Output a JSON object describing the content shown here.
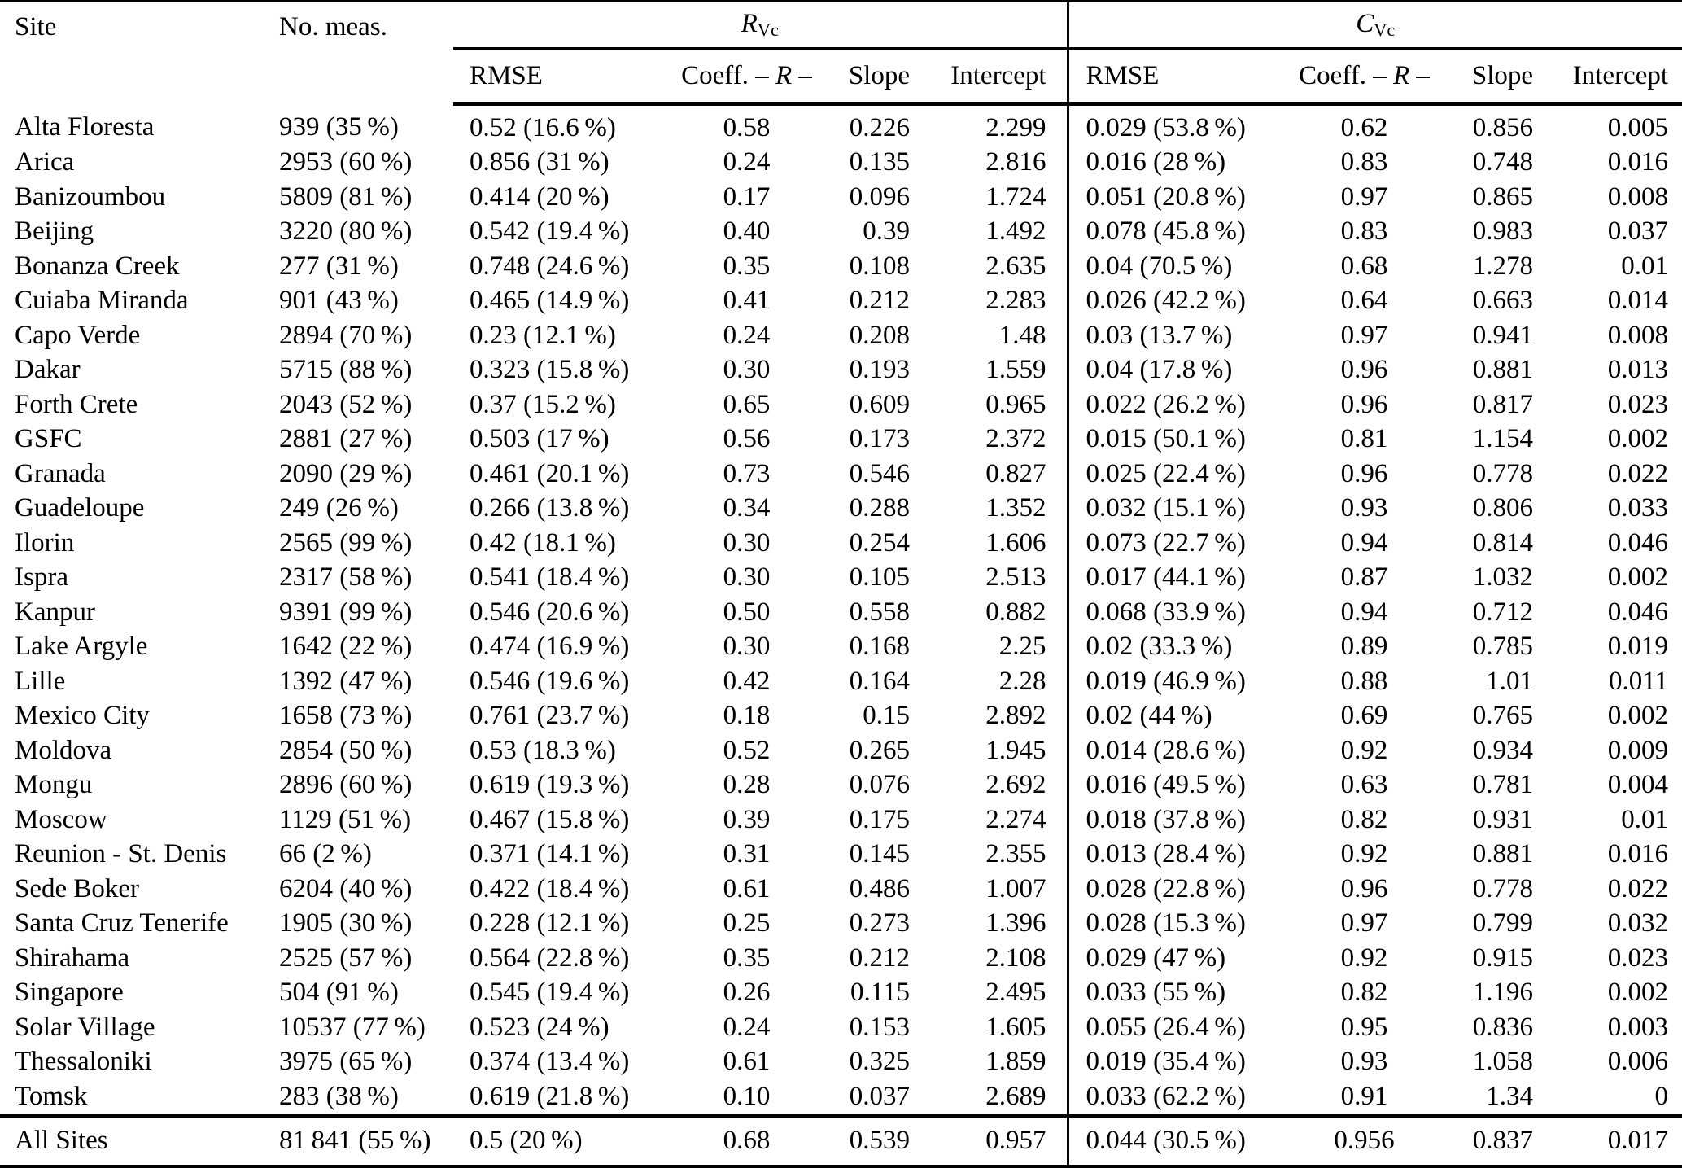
{
  "table": {
    "header": {
      "site": "Site",
      "no_meas": "No. meas."
    },
    "groups": [
      {
        "letter": "R",
        "sub": "Vc"
      },
      {
        "letter": "C",
        "sub": "Vc"
      }
    ],
    "sub_headers": {
      "rmse": "RMSE",
      "coeff": [
        "Coeff. – ",
        "R",
        " –"
      ],
      "slope": "Slope",
      "intercept": "Intercept"
    },
    "rows": [
      [
        "Alta Floresta",
        "939 (35 %)",
        "0.52 (16.6 %)",
        "0.58",
        "0.226",
        "2.299",
        "0.029 (53.8 %)",
        "0.62",
        "0.856",
        "0.005"
      ],
      [
        "Arica",
        "2953 (60 %)",
        "0.856 (31 %)",
        "0.24",
        "0.135",
        "2.816",
        "0.016 (28 %)",
        "0.83",
        "0.748",
        "0.016"
      ],
      [
        "Banizoumbou",
        "5809 (81 %)",
        "0.414 (20 %)",
        "0.17",
        "0.096",
        "1.724",
        "0.051 (20.8 %)",
        "0.97",
        "0.865",
        "0.008"
      ],
      [
        "Beijing",
        "3220 (80 %)",
        "0.542 (19.4 %)",
        "0.40",
        "0.39",
        "1.492",
        "0.078 (45.8 %)",
        "0.83",
        "0.983",
        "0.037"
      ],
      [
        "Bonanza Creek",
        "277 (31 %)",
        "0.748 (24.6 %)",
        "0.35",
        "0.108",
        "2.635",
        "0.04 (70.5 %)",
        "0.68",
        "1.278",
        "0.01"
      ],
      [
        "Cuiaba Miranda",
        "901 (43 %)",
        "0.465 (14.9 %)",
        "0.41",
        "0.212",
        "2.283",
        "0.026 (42.2 %)",
        "0.64",
        "0.663",
        "0.014"
      ],
      [
        "Capo Verde",
        "2894 (70 %)",
        "0.23 (12.1 %)",
        "0.24",
        "0.208",
        "1.48",
        "0.03 (13.7 %)",
        "0.97",
        "0.941",
        "0.008"
      ],
      [
        "Dakar",
        "5715 (88 %)",
        "0.323 (15.8 %)",
        "0.30",
        "0.193",
        "1.559",
        "0.04 (17.8 %)",
        "0.96",
        "0.881",
        "0.013"
      ],
      [
        "Forth Crete",
        "2043 (52 %)",
        "0.37 (15.2 %)",
        "0.65",
        "0.609",
        "0.965",
        "0.022 (26.2 %)",
        "0.96",
        "0.817",
        "0.023"
      ],
      [
        "GSFC",
        "2881 (27 %)",
        "0.503 (17 %)",
        "0.56",
        "0.173",
        "2.372",
        "0.015 (50.1 %)",
        "0.81",
        "1.154",
        "0.002"
      ],
      [
        "Granada",
        "2090 (29 %)",
        "0.461 (20.1 %)",
        "0.73",
        "0.546",
        "0.827",
        "0.025 (22.4 %)",
        "0.96",
        "0.778",
        "0.022"
      ],
      [
        "Guadeloupe",
        "249 (26 %)",
        "0.266 (13.8 %)",
        "0.34",
        "0.288",
        "1.352",
        "0.032 (15.1 %)",
        "0.93",
        "0.806",
        "0.033"
      ],
      [
        "Ilorin",
        "2565 (99 %)",
        "0.42 (18.1 %)",
        "0.30",
        "0.254",
        "1.606",
        "0.073 (22.7 %)",
        "0.94",
        "0.814",
        "0.046"
      ],
      [
        "Ispra",
        "2317 (58 %)",
        "0.541 (18.4 %)",
        "0.30",
        "0.105",
        "2.513",
        "0.017 (44.1 %)",
        "0.87",
        "1.032",
        "0.002"
      ],
      [
        "Kanpur",
        "9391 (99 %)",
        "0.546 (20.6 %)",
        "0.50",
        "0.558",
        "0.882",
        "0.068 (33.9 %)",
        "0.94",
        "0.712",
        "0.046"
      ],
      [
        "Lake Argyle",
        "1642 (22 %)",
        "0.474 (16.9 %)",
        "0.30",
        "0.168",
        "2.25",
        "0.02 (33.3 %)",
        "0.89",
        "0.785",
        "0.019"
      ],
      [
        "Lille",
        "1392 (47 %)",
        "0.546 (19.6 %)",
        "0.42",
        "0.164",
        "2.28",
        "0.019 (46.9 %)",
        "0.88",
        "1.01",
        "0.011"
      ],
      [
        "Mexico City",
        "1658 (73 %)",
        "0.761 (23.7 %)",
        "0.18",
        "0.15",
        "2.892",
        "0.02 (44 %)",
        "0.69",
        "0.765",
        "0.002"
      ],
      [
        "Moldova",
        "2854 (50 %)",
        "0.53 (18.3 %)",
        "0.52",
        "0.265",
        "1.945",
        "0.014 (28.6 %)",
        "0.92",
        "0.934",
        "0.009"
      ],
      [
        "Mongu",
        "2896 (60 %)",
        "0.619 (19.3 %)",
        "0.28",
        "0.076",
        "2.692",
        "0.016 (49.5 %)",
        "0.63",
        "0.781",
        "0.004"
      ],
      [
        "Moscow",
        "1129 (51 %)",
        "0.467 (15.8 %)",
        "0.39",
        "0.175",
        "2.274",
        "0.018 (37.8 %)",
        "0.82",
        "0.931",
        "0.01"
      ],
      [
        "Reunion - St. Denis",
        "66 (2 %)",
        "0.371 (14.1 %)",
        "0.31",
        "0.145",
        "2.355",
        "0.013 (28.4 %)",
        "0.92",
        "0.881",
        "0.016"
      ],
      [
        "Sede Boker",
        "6204 (40 %)",
        "0.422 (18.4 %)",
        "0.61",
        "0.486",
        "1.007",
        "0.028 (22.8 %)",
        "0.96",
        "0.778",
        "0.022"
      ],
      [
        "Santa Cruz Tenerife",
        "1905 (30 %)",
        "0.228 (12.1 %)",
        "0.25",
        "0.273",
        "1.396",
        "0.028 (15.3 %)",
        "0.97",
        "0.799",
        "0.032"
      ],
      [
        "Shirahama",
        "2525 (57 %)",
        "0.564 (22.8 %)",
        "0.35",
        "0.212",
        "2.108",
        "0.029 (47 %)",
        "0.92",
        "0.915",
        "0.023"
      ],
      [
        "Singapore",
        "504 (91 %)",
        "0.545 (19.4 %)",
        "0.26",
        "0.115",
        "2.495",
        "0.033 (55 %)",
        "0.82",
        "1.196",
        "0.002"
      ],
      [
        "Solar Village",
        "10537 (77 %)",
        "0.523 (24 %)",
        "0.24",
        "0.153",
        "1.605",
        "0.055 (26.4 %)",
        "0.95",
        "0.836",
        "0.003"
      ],
      [
        "Thessaloniki",
        "3975 (65 %)",
        "0.374 (13.4 %)",
        "0.61",
        "0.325",
        "1.859",
        "0.019 (35.4 %)",
        "0.93",
        "1.058",
        "0.006"
      ],
      [
        "Tomsk",
        "283 (38 %)",
        "0.619 (21.8 %)",
        "0.10",
        "0.037",
        "2.689",
        "0.033 (62.2 %)",
        "0.91",
        "1.34",
        "0"
      ]
    ],
    "footer": [
      "All Sites",
      "81 841 (55 %)",
      "0.5 (20 %)",
      "0.68",
      "0.539",
      "0.957",
      "0.044 (30.5 %)",
      "0.956",
      "0.837",
      "0.017"
    ]
  }
}
